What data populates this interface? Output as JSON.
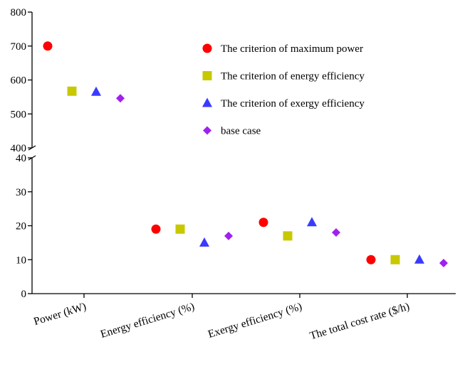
{
  "chart_data": {
    "type": "scatter",
    "title": "",
    "xlabel": "",
    "ylabel": "",
    "categories": [
      "Power (kW)",
      "Energy efficiency (%)",
      "Exergy efficiency (%)",
      "The total cost rate ($/h)"
    ],
    "broken_y_axis": true,
    "upper_axis": {
      "ylim": [
        400,
        800
      ],
      "ticks": [
        400,
        500,
        600,
        700,
        800
      ]
    },
    "lower_axis": {
      "ylim": [
        0,
        40
      ],
      "ticks": [
        0,
        10,
        20,
        30,
        40
      ]
    },
    "legend": {
      "placement": "top-right-inside"
    },
    "series": [
      {
        "name": "The criterion of maximum power",
        "marker": "circle",
        "color": "#ff0000",
        "values": [
          700,
          19,
          21,
          10
        ]
      },
      {
        "name": "The criterion of energy efficiency",
        "marker": "square",
        "color": "#c8c800",
        "values": [
          567,
          19,
          17,
          10
        ]
      },
      {
        "name": "The criterion of exergy efficiency",
        "marker": "triangle",
        "color": "#3a3aff",
        "values": [
          565,
          15,
          21,
          10
        ]
      },
      {
        "name": "base case",
        "marker": "diamond",
        "color": "#a020f0",
        "values": [
          546,
          17,
          18,
          9
        ]
      }
    ]
  }
}
